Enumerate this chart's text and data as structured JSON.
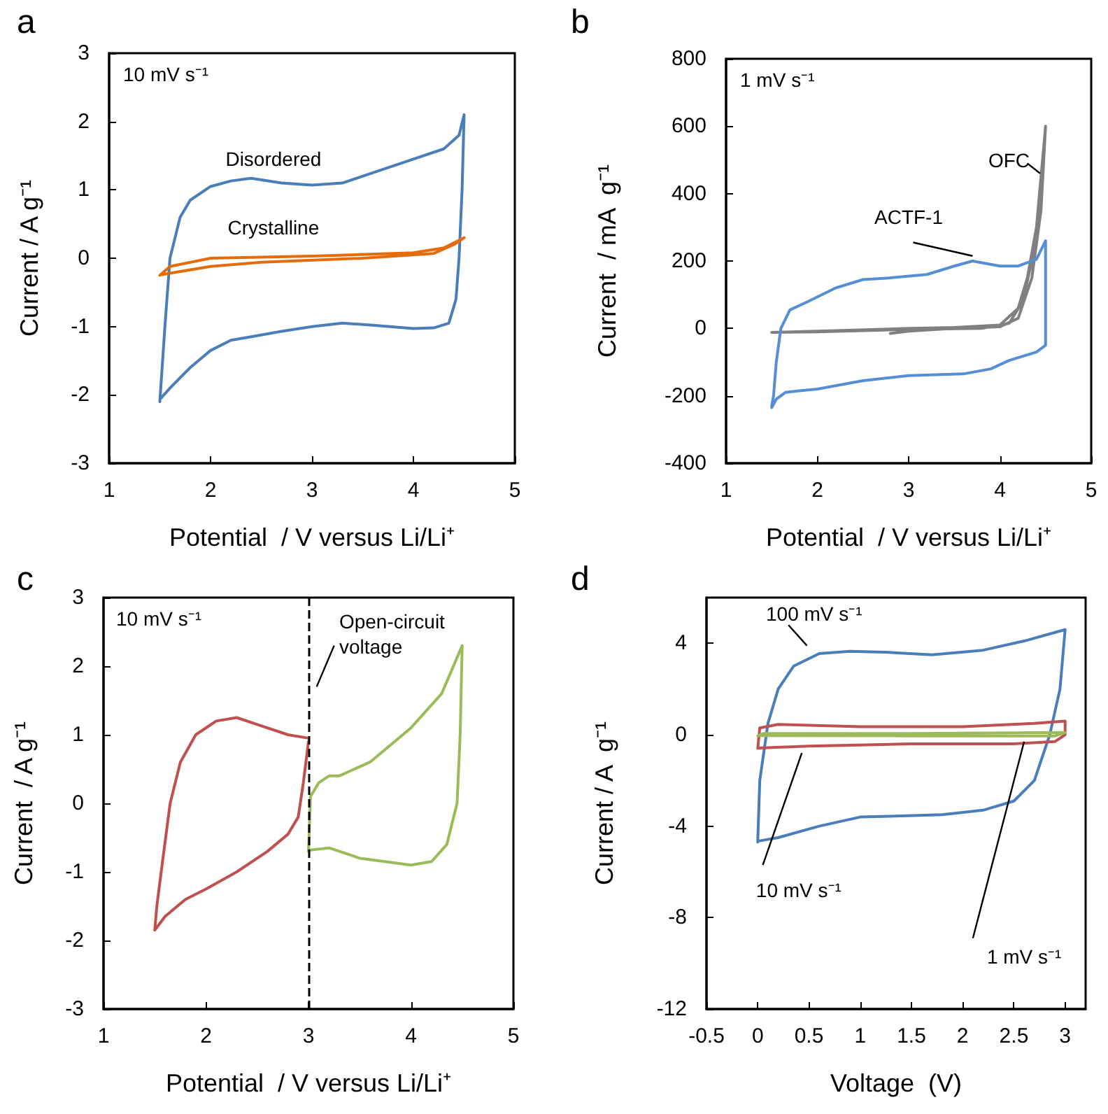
{
  "chart_data": [
    {
      "type": "line",
      "title": "a",
      "xlabel": "Potential  / V versus Li/Li⁺",
      "ylabel": "Current / A g⁻¹",
      "xlim": [
        1,
        5
      ],
      "ylim": [
        -3,
        3
      ],
      "xticks": [
        1,
        2,
        3,
        4,
        5
      ],
      "yticks": [
        -3,
        -2,
        -1,
        0,
        1,
        2,
        3
      ],
      "annotations": [
        "10 mV s⁻¹"
      ],
      "series": [
        {
          "name": "Disordered",
          "color": "#4a7ebb",
          "x": [
            1.5,
            1.55,
            1.6,
            1.7,
            1.8,
            2.0,
            2.2,
            2.4,
            2.7,
            3.0,
            3.3,
            3.6,
            4.0,
            4.3,
            4.45,
            4.5,
            4.48,
            4.45,
            4.42,
            4.35,
            4.2,
            4.0,
            3.6,
            3.3,
            3.0,
            2.7,
            2.4,
            2.2,
            2.0,
            1.8,
            1.6,
            1.51
          ],
          "values": [
            -2.1,
            -1.0,
            0,
            0.6,
            0.85,
            1.05,
            1.13,
            1.17,
            1.1,
            1.07,
            1.1,
            1.25,
            1.45,
            1.6,
            1.8,
            2.1,
            1.0,
            0,
            -0.6,
            -0.95,
            -1.02,
            -1.03,
            -0.98,
            -0.95,
            -1.0,
            -1.07,
            -1.15,
            -1.2,
            -1.35,
            -1.6,
            -1.9,
            -2.05
          ]
        },
        {
          "name": "Crystalline",
          "color": "#e46c0a",
          "x": [
            1.5,
            1.6,
            2.0,
            3.0,
            4.0,
            4.3,
            4.5,
            4.4,
            4.2,
            3.5,
            2.5,
            2.0,
            1.6,
            1.52
          ],
          "values": [
            -0.25,
            -0.12,
            0.0,
            0.03,
            0.08,
            0.15,
            0.3,
            0.2,
            0.07,
            0.0,
            -0.06,
            -0.12,
            -0.22,
            -0.24
          ]
        }
      ]
    },
    {
      "type": "line",
      "title": "b",
      "xlabel": "Potential  / V versus Li/Li⁺",
      "ylabel": "Current  / mA  g⁻¹",
      "xlim": [
        1,
        5
      ],
      "ylim": [
        -400,
        800
      ],
      "xticks": [
        1,
        2,
        3,
        4,
        5
      ],
      "yticks": [
        -400,
        -200,
        0,
        200,
        400,
        600,
        800
      ],
      "annotations": [
        "1 mV s⁻¹"
      ],
      "series": [
        {
          "name": "OFC",
          "color": "#808080",
          "x": [
            2.8,
            3.0,
            3.5,
            4.0,
            4.2,
            4.35,
            4.45,
            4.5,
            4.45,
            4.35,
            4.25,
            4.1,
            3.8,
            3.0,
            2.0,
            1.5,
            2.0,
            3.0,
            3.5,
            4.0,
            4.2,
            4.3,
            4.4,
            4.5
          ],
          "values": [
            -15,
            -8,
            0,
            5,
            30,
            150,
            350,
            600,
            400,
            200,
            80,
            15,
            0,
            -3,
            -10,
            -12,
            -8,
            0,
            3,
            10,
            60,
            150,
            300,
            600
          ]
        },
        {
          "name": "ACTF-1",
          "color": "#558ed5",
          "x": [
            1.5,
            1.52,
            1.55,
            1.6,
            1.7,
            1.9,
            2.2,
            2.5,
            2.8,
            3.2,
            3.5,
            3.7,
            4.0,
            4.2,
            4.4,
            4.5,
            4.5,
            4.5,
            4.4,
            4.1,
            3.9,
            3.6,
            3.0,
            2.5,
            2.0,
            1.8,
            1.65,
            1.55,
            1.5
          ],
          "values": [
            -230,
            -200,
            -100,
            0,
            55,
            80,
            120,
            145,
            150,
            160,
            185,
            200,
            185,
            185,
            205,
            260,
            200,
            -50,
            -70,
            -95,
            -120,
            -135,
            -140,
            -155,
            -180,
            -185,
            -190,
            -210,
            -235
          ]
        }
      ]
    },
    {
      "type": "line",
      "title": "c",
      "xlabel": "Potential  / V versus Li/Li⁺",
      "ylabel": "Current  / A g⁻¹",
      "xlim": [
        1,
        5
      ],
      "ylim": [
        -3,
        3
      ],
      "xticks": [
        1,
        2,
        3,
        4,
        5
      ],
      "yticks": [
        -3,
        -2,
        -1,
        0,
        1,
        2,
        3
      ],
      "annotations": [
        "10 mV s⁻¹"
      ],
      "ref_lines": [
        {
          "axis": "x",
          "value": 3,
          "label": "Open-circuit voltage",
          "color": "#000000",
          "line_style": "dashed"
        }
      ],
      "series": [
        {
          "color": "#c0504d",
          "x": [
            3.0,
            2.8,
            2.5,
            2.3,
            2.1,
            1.9,
            1.75,
            1.65,
            1.58,
            1.52,
            1.5,
            1.6,
            1.8,
            2.0,
            2.3,
            2.6,
            2.8,
            2.9,
            2.95,
            3.0
          ],
          "values": [
            0.95,
            1.0,
            1.15,
            1.25,
            1.2,
            1.0,
            0.6,
            0,
            -0.8,
            -1.5,
            -1.85,
            -1.65,
            -1.4,
            -1.25,
            -1.0,
            -0.7,
            -0.45,
            -0.2,
            0.3,
            0.9
          ]
        },
        {
          "color": "#9bbb59",
          "x": [
            3.0,
            3.02,
            3.1,
            3.2,
            3.3,
            3.6,
            4.0,
            4.3,
            4.5,
            4.48,
            4.45,
            4.35,
            4.2,
            4.0,
            3.5,
            3.2,
            3.02
          ],
          "values": [
            -0.7,
            0.1,
            0.3,
            0.4,
            0.4,
            0.6,
            1.1,
            1.6,
            2.3,
            1.0,
            0,
            -0.6,
            -0.85,
            -0.9,
            -0.8,
            -0.65,
            -0.68
          ]
        }
      ]
    },
    {
      "type": "line",
      "title": "d",
      "xlabel": "Voltage  (V)",
      "ylabel": "Current / A  g⁻¹",
      "xlim": [
        -0.5,
        3.2
      ],
      "ylim": [
        -12,
        6
      ],
      "xticks": [
        -0.5,
        0,
        0.5,
        1,
        1.5,
        2,
        2.5,
        3
      ],
      "yticks": [
        -12,
        -8,
        -4,
        0,
        4
      ],
      "series": [
        {
          "name": "100 mV s⁻¹",
          "color": "#4a7ebb",
          "x": [
            0,
            0.02,
            0.1,
            0.2,
            0.35,
            0.6,
            0.9,
            1.3,
            1.7,
            2.2,
            2.6,
            3.0,
            2.95,
            2.85,
            2.7,
            2.5,
            2.2,
            1.8,
            1.4,
            1.0,
            0.6,
            0.2,
            0.01
          ],
          "values": [
            -4.7,
            -2,
            0.5,
            2,
            3,
            3.55,
            3.65,
            3.6,
            3.5,
            3.7,
            4.1,
            4.6,
            2,
            0,
            -2,
            -2.9,
            -3.3,
            -3.5,
            -3.55,
            -3.6,
            -4.0,
            -4.5,
            -4.65
          ]
        },
        {
          "name": "10 mV s⁻¹",
          "color": "#c0504d",
          "x": [
            0,
            0.02,
            0.2,
            1,
            2,
            2.7,
            3.0,
            3.0,
            2.9,
            2.5,
            1.5,
            0.5,
            0.01
          ],
          "values": [
            -0.6,
            0.3,
            0.45,
            0.35,
            0.35,
            0.5,
            0.6,
            0,
            -0.3,
            -0.4,
            -0.4,
            -0.5,
            -0.58
          ]
        },
        {
          "name": "1 mV s⁻¹",
          "color": "#9bbb59",
          "x": [
            0,
            0.05,
            1.5,
            3.0,
            2.9,
            1.5,
            0.01
          ],
          "values": [
            -0.05,
            0.05,
            0.05,
            0.1,
            -0.05,
            -0.05,
            -0.04
          ]
        }
      ]
    }
  ]
}
